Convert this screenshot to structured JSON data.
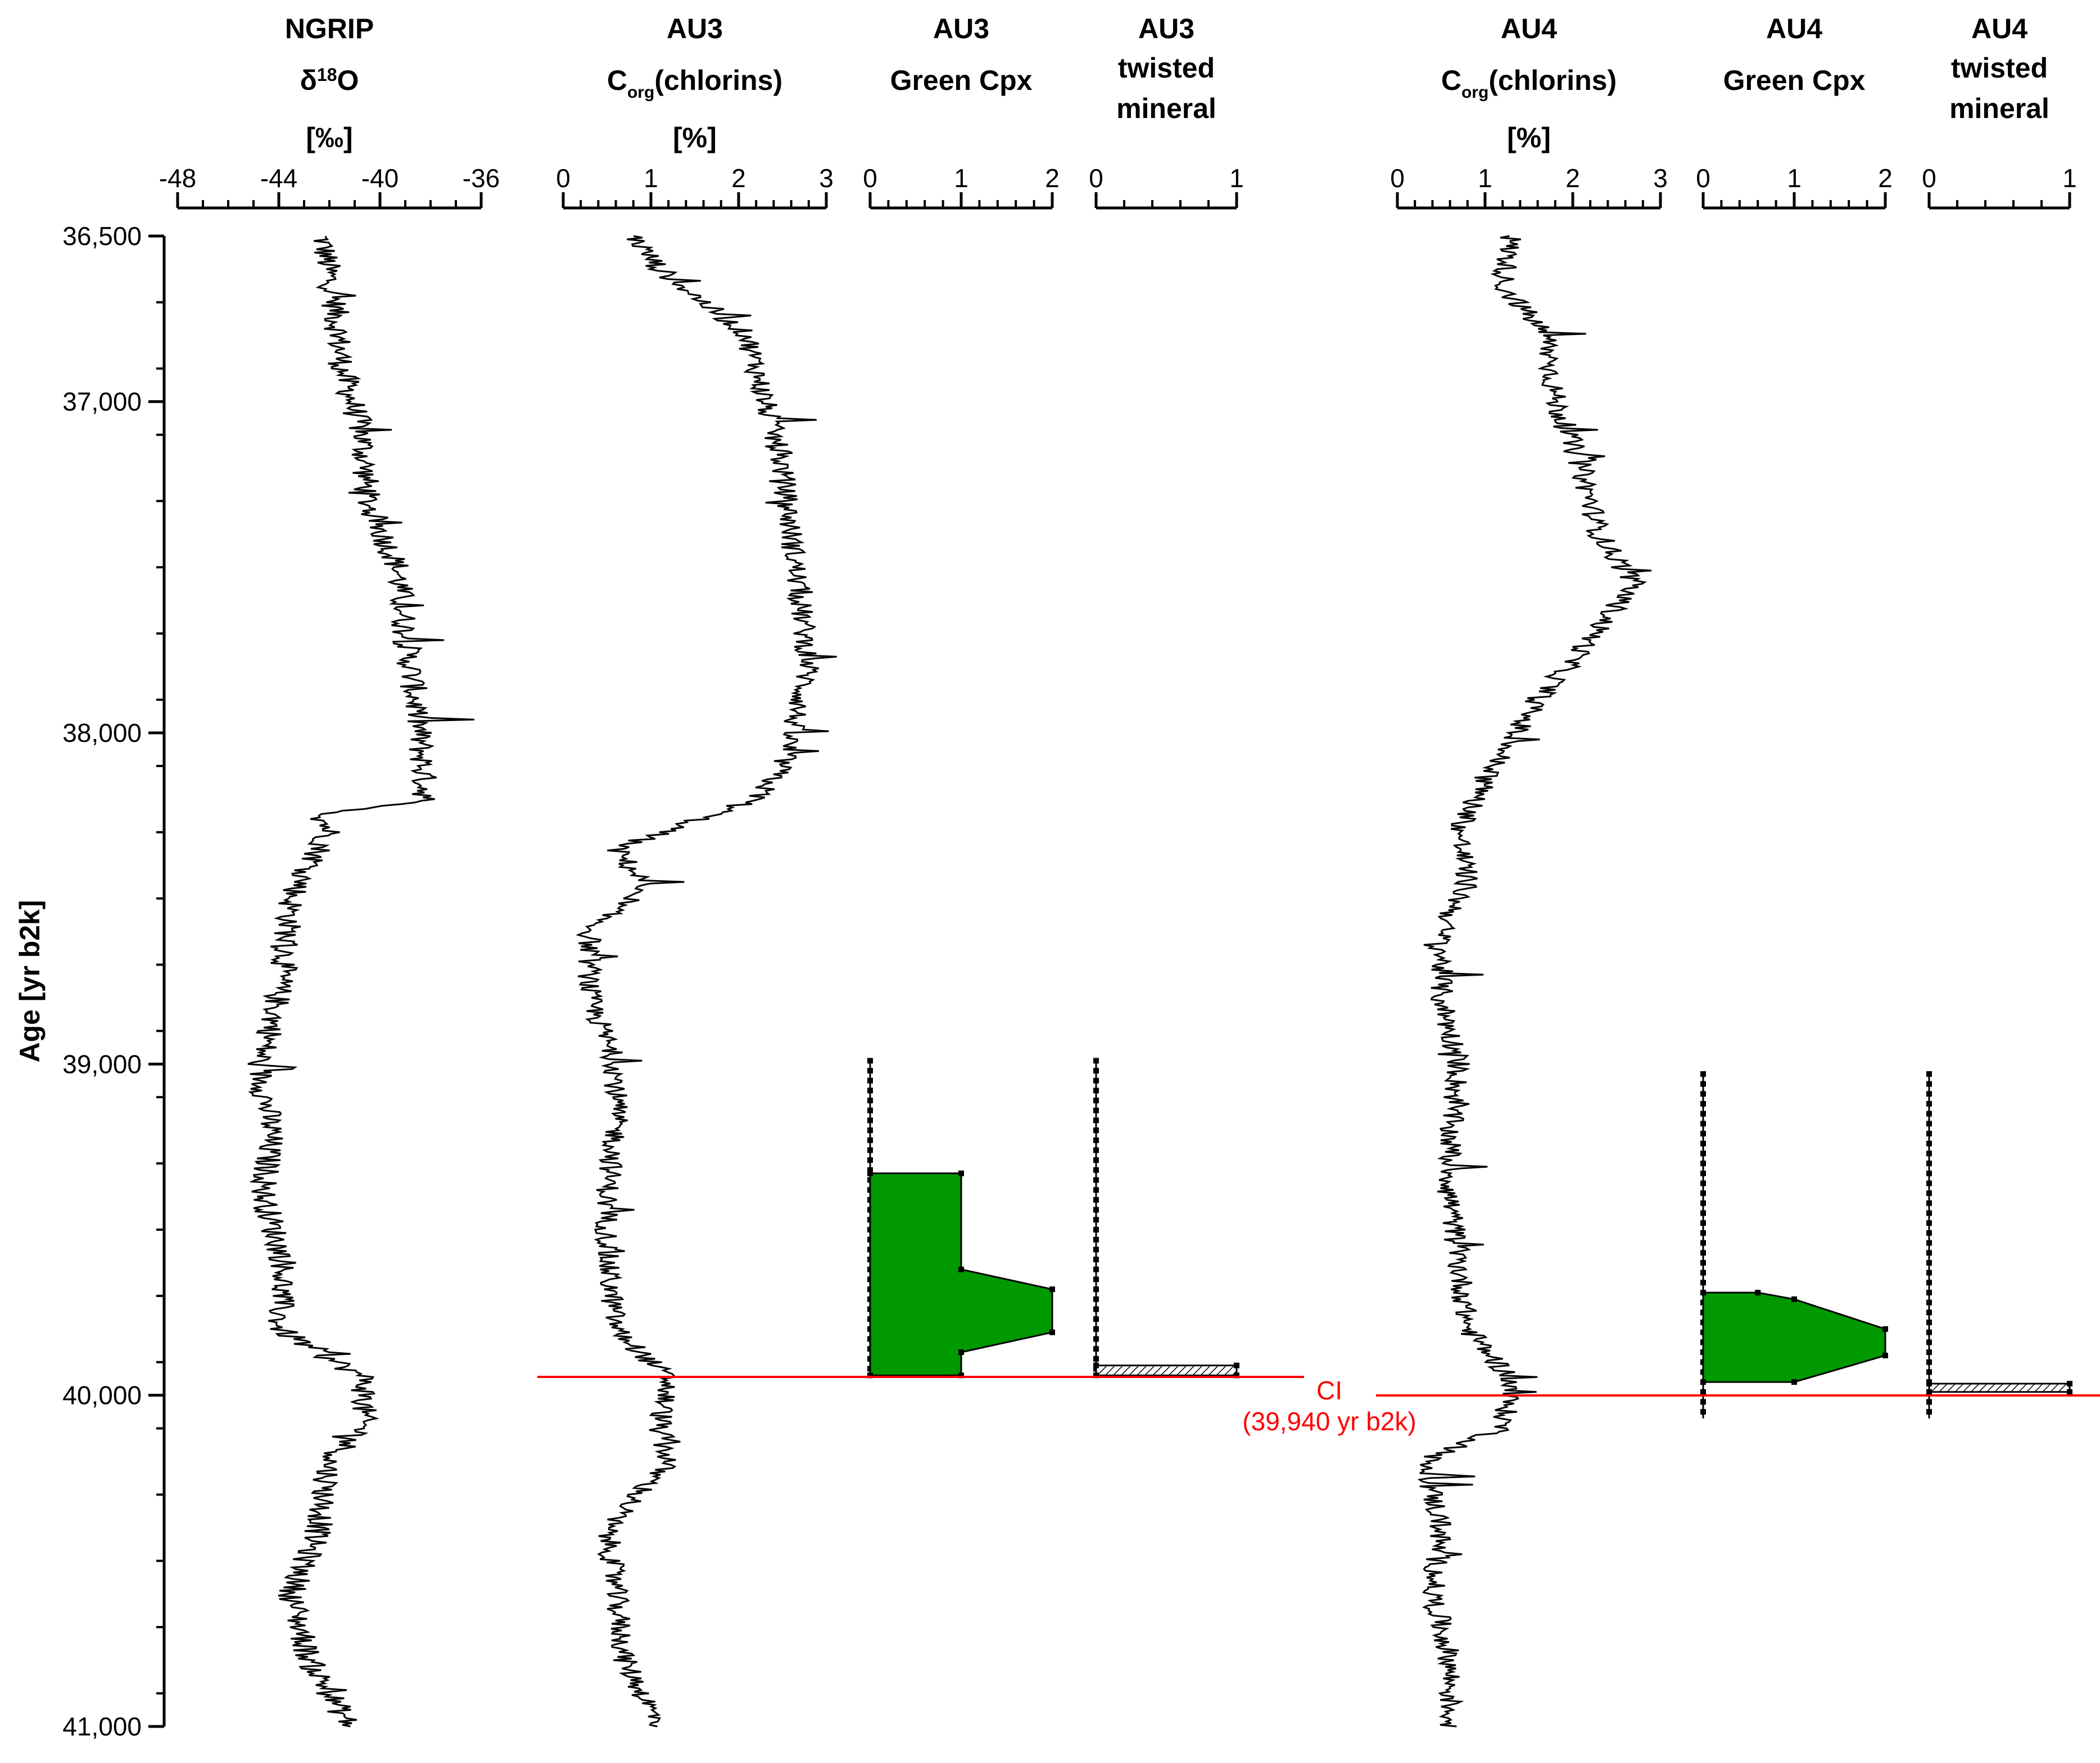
{
  "chart_data": {
    "type": "line",
    "ylabel": "Age [yr b2k]",
    "y_axis": {
      "reversed": true,
      "ylim": [
        36500,
        41000
      ],
      "major_ticks": [
        36500,
        37000,
        38000,
        39000,
        40000,
        41000
      ],
      "major_labels": [
        "36,500",
        "37,000",
        "38,000",
        "39,000",
        "40,000",
        "41,000"
      ],
      "minor_step": 200
    },
    "tracks": [
      {
        "id": "ngrip",
        "header": [
          "NGRIP",
          "δ18O",
          "[‰]"
        ],
        "xlim": [
          -48,
          -36
        ],
        "ticks": [
          -48,
          -44,
          -40,
          -36
        ],
        "tick_labels": [
          "-48",
          "-44",
          "-40",
          "-36"
        ],
        "minor_step": 1,
        "series": {
          "kind": "line",
          "ages": [
            36500,
            36700,
            36900,
            37100,
            37300,
            37500,
            37700,
            37900,
            38100,
            38200,
            38250,
            38300,
            38500,
            38700,
            38900,
            39000,
            39200,
            39400,
            39600,
            39800,
            39950,
            40100,
            40200,
            40400,
            40600,
            40800,
            41000
          ],
          "values": [
            -42.3,
            -41.8,
            -41.5,
            -40.7,
            -40.5,
            -39.3,
            -39.0,
            -38.6,
            -38.3,
            -38.2,
            -42.3,
            -42.0,
            -43.5,
            -43.8,
            -44.3,
            -44.8,
            -44.3,
            -44.6,
            -43.8,
            -44.0,
            -40.6,
            -40.7,
            -42.0,
            -42.4,
            -43.5,
            -42.8,
            -41.2
          ]
        }
      },
      {
        "id": "au3-chlorins",
        "header": [
          "AU3",
          "Corg(chlorins)",
          "[%]"
        ],
        "xlim": [
          0,
          3
        ],
        "ticks": [
          0,
          1,
          2,
          3
        ],
        "tick_labels": [
          "0",
          "1",
          "2",
          "3"
        ],
        "minor_step": 0.2,
        "series": {
          "kind": "line",
          "ages": [
            36500,
            36600,
            36700,
            36800,
            37000,
            37200,
            37400,
            37600,
            37800,
            38000,
            38100,
            38200,
            38350,
            38450,
            38600,
            38800,
            39000,
            39200,
            39400,
            39600,
            39800,
            39950,
            40100,
            40200,
            40400,
            40600,
            40800,
            41000
          ],
          "values": [
            0.8,
            1.1,
            1.6,
            2.1,
            2.3,
            2.5,
            2.6,
            2.7,
            2.8,
            2.6,
            2.5,
            2.2,
            0.6,
            0.9,
            0.3,
            0.3,
            0.6,
            0.6,
            0.5,
            0.5,
            0.6,
            1.2,
            1.1,
            1.2,
            0.5,
            0.6,
            0.7,
            1.1
          ]
        }
      },
      {
        "id": "au3-green-cpx",
        "header": [
          "AU3",
          "Green Cpx"
        ],
        "xlim": [
          0,
          2
        ],
        "ticks": [
          0,
          1,
          2
        ],
        "tick_labels": [
          "0",
          "1",
          "2"
        ],
        "minor_step": 0.2,
        "series": {
          "kind": "area",
          "color": "#009900",
          "ages": [
            39330,
            39330,
            39620,
            39680,
            39810,
            39870,
            39940,
            39940
          ],
          "values": [
            0,
            1,
            1,
            2,
            2,
            1,
            1,
            0
          ]
        },
        "sample_ages": [
          38990,
          39940
        ]
      },
      {
        "id": "au3-twisted-mineral",
        "header": [
          "AU3",
          "twisted",
          "mineral"
        ],
        "xlim": [
          0,
          1
        ],
        "ticks": [
          0,
          1
        ],
        "tick_labels": [
          "0",
          "1"
        ],
        "minor_step": 0.2,
        "series": {
          "kind": "area",
          "ages": [
            39910,
            39910,
            39940,
            39940
          ],
          "values": [
            0,
            1,
            1,
            0
          ]
        },
        "sample_ages": [
          38990,
          39940
        ]
      },
      {
        "id": "au4-chlorins",
        "header": [
          "AU4",
          "Corg(chlorins)",
          "[%]"
        ],
        "xlim": [
          0,
          3
        ],
        "ticks": [
          0,
          1,
          2,
          3
        ],
        "tick_labels": [
          "0",
          "1",
          "2",
          "3"
        ],
        "minor_step": 0.2,
        "series": {
          "kind": "line",
          "ages": [
            36500,
            36650,
            36800,
            37000,
            37200,
            37400,
            37550,
            37750,
            37900,
            38100,
            38300,
            38450,
            38600,
            38800,
            39000,
            39200,
            39400,
            39600,
            39800,
            39950,
            40100,
            40200,
            40400,
            40600,
            40800,
            41000
          ],
          "values": [
            1.3,
            1.2,
            1.7,
            1.8,
            2.1,
            2.3,
            2.7,
            2.1,
            1.6,
            1.1,
            0.7,
            0.8,
            0.5,
            0.5,
            0.7,
            0.6,
            0.6,
            0.7,
            0.8,
            1.3,
            1.2,
            0.3,
            0.5,
            0.4,
            0.6,
            0.6
          ]
        }
      },
      {
        "id": "au4-green-cpx",
        "header": [
          "AU4",
          "Green Cpx"
        ],
        "xlim": [
          0,
          2
        ],
        "ticks": [
          0,
          1,
          2
        ],
        "tick_labels": [
          "0",
          "1",
          "2"
        ],
        "minor_step": 0.2,
        "series": {
          "kind": "area",
          "color": "#009900",
          "ages": [
            39690,
            39690,
            39710,
            39800,
            39880,
            39960,
            39960
          ],
          "values": [
            0,
            0.6,
            1,
            2,
            2,
            1,
            0
          ]
        },
        "sample_ages": [
          39030,
          40070
        ]
      },
      {
        "id": "au4-twisted-mineral",
        "header": [
          "AU4",
          "twisted",
          "mineral"
        ],
        "xlim": [
          0,
          1
        ],
        "ticks": [
          0,
          1
        ],
        "tick_labels": [
          "0",
          "1"
        ],
        "minor_step": 0.2,
        "series": {
          "kind": "area",
          "ages": [
            39965,
            39965,
            39990,
            39990
          ],
          "values": [
            0,
            1,
            1,
            0
          ]
        },
        "sample_ages": [
          39030,
          40070
        ]
      }
    ],
    "annotations": [
      {
        "id": "ci-line",
        "label": "CI",
        "sublabel": "(39,940 yr b2k)",
        "color": "#ff0000"
      }
    ]
  }
}
